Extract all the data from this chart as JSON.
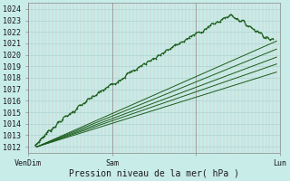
{
  "title": "",
  "xlabel": "Pression niveau de la mer( hPa )",
  "ylabel": "",
  "ylim": [
    1011.5,
    1024.5
  ],
  "xlim": [
    0,
    72
  ],
  "yticks": [
    1012,
    1013,
    1014,
    1015,
    1016,
    1017,
    1018,
    1019,
    1020,
    1021,
    1022,
    1023,
    1024
  ],
  "xtick_positions": [
    0,
    24,
    48,
    72
  ],
  "xtick_labels": [
    "VenDim",
    "Sam",
    "",
    "Lun"
  ],
  "bg_color": "#c8ece8",
  "grid_color_h": "#aed4d0",
  "grid_color_v": "#d8c0c0",
  "line_color": "#1a5c1a",
  "line_width": 0.9,
  "forecast_origins": [
    [
      2.5,
      1012.0
    ]
  ],
  "forecast_ends": [
    [
      71,
      1021.2
    ],
    [
      71,
      1020.5
    ],
    [
      71,
      1019.8
    ],
    [
      71,
      1019.2
    ],
    [
      71,
      1018.5
    ]
  ]
}
